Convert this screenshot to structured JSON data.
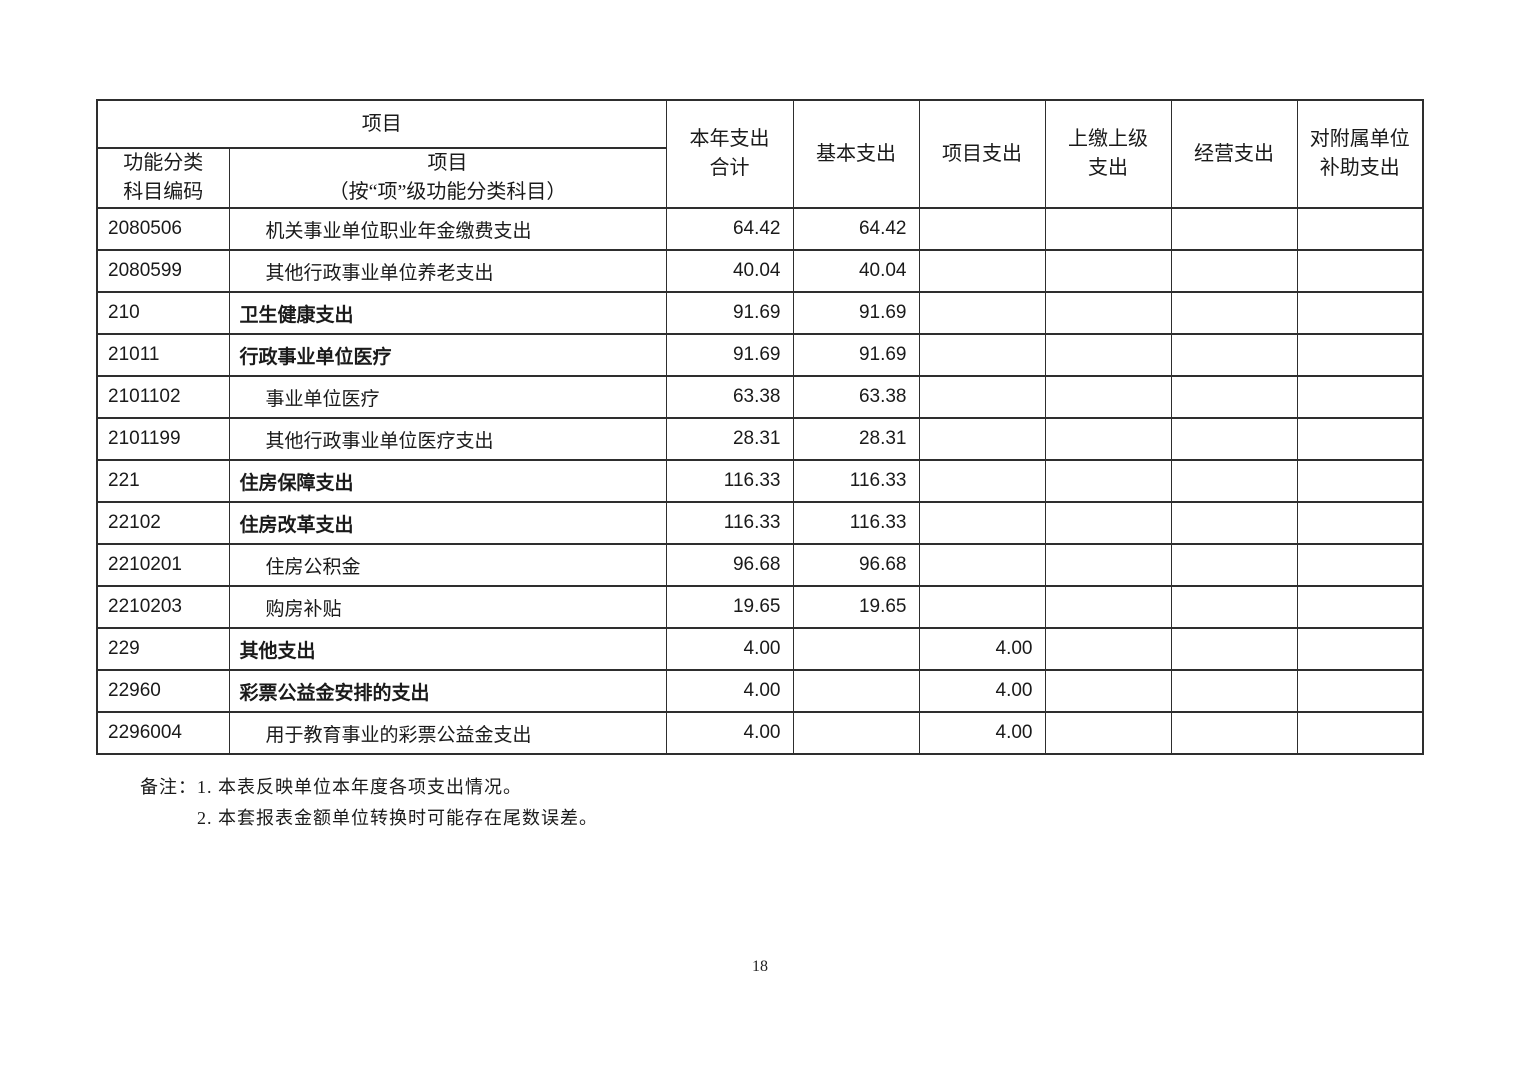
{
  "table": {
    "header": {
      "project_group_label": "项目",
      "code_column": {
        "line1": "功能分类",
        "line2": "科目编码"
      },
      "item_column": {
        "line1": "项目",
        "line2": "（按“项”级功能分类科目）"
      },
      "value_columns": [
        {
          "id": "total",
          "lines": [
            "本年支出",
            "合计"
          ]
        },
        {
          "id": "basic",
          "lines": [
            "基本支出"
          ]
        },
        {
          "id": "project",
          "lines": [
            "项目支出"
          ]
        },
        {
          "id": "upper",
          "lines": [
            "上缴上级",
            "支出"
          ]
        },
        {
          "id": "operating",
          "lines": [
            "经营支出"
          ]
        },
        {
          "id": "subsidy",
          "lines": [
            "对附属单位",
            "补助支出"
          ]
        }
      ]
    },
    "rows": [
      {
        "code": "2080506",
        "name": "机关事业单位职业年金缴费支出",
        "level": "sub",
        "values": [
          "64.42",
          "64.42",
          "",
          "",
          "",
          ""
        ]
      },
      {
        "code": "2080599",
        "name": "其他行政事业单位养老支出",
        "level": "sub",
        "values": [
          "40.04",
          "40.04",
          "",
          "",
          "",
          ""
        ]
      },
      {
        "code": "210",
        "name": "卫生健康支出",
        "level": "top",
        "values": [
          "91.69",
          "91.69",
          "",
          "",
          "",
          ""
        ]
      },
      {
        "code": "21011",
        "name": "行政事业单位医疗",
        "level": "top",
        "values": [
          "91.69",
          "91.69",
          "",
          "",
          "",
          ""
        ]
      },
      {
        "code": "2101102",
        "name": "事业单位医疗",
        "level": "sub",
        "values": [
          "63.38",
          "63.38",
          "",
          "",
          "",
          ""
        ]
      },
      {
        "code": "2101199",
        "name": "其他行政事业单位医疗支出",
        "level": "sub",
        "values": [
          "28.31",
          "28.31",
          "",
          "",
          "",
          ""
        ]
      },
      {
        "code": "221",
        "name": "住房保障支出",
        "level": "top",
        "values": [
          "116.33",
          "116.33",
          "",
          "",
          "",
          ""
        ]
      },
      {
        "code": "22102",
        "name": "住房改革支出",
        "level": "top",
        "values": [
          "116.33",
          "116.33",
          "",
          "",
          "",
          ""
        ]
      },
      {
        "code": "2210201",
        "name": "住房公积金",
        "level": "sub",
        "values": [
          "96.68",
          "96.68",
          "",
          "",
          "",
          ""
        ]
      },
      {
        "code": "2210203",
        "name": "购房补贴",
        "level": "sub",
        "values": [
          "19.65",
          "19.65",
          "",
          "",
          "",
          ""
        ]
      },
      {
        "code": "229",
        "name": "其他支出",
        "level": "top",
        "values": [
          "4.00",
          "",
          "4.00",
          "",
          "",
          ""
        ]
      },
      {
        "code": "22960",
        "name": "彩票公益金安排的支出",
        "level": "top",
        "values": [
          "4.00",
          "",
          "4.00",
          "",
          "",
          ""
        ]
      },
      {
        "code": "2296004",
        "name": "用于教育事业的彩票公益金支出",
        "level": "sub",
        "values": [
          "4.00",
          "",
          "4.00",
          "",
          "",
          ""
        ]
      }
    ]
  },
  "notes": {
    "line1": "备注：1. 本表反映单位本年度各项支出情况。",
    "line2": "2. 本套报表金额单位转换时可能存在尾数误差。"
  },
  "page": {
    "number": "18"
  }
}
